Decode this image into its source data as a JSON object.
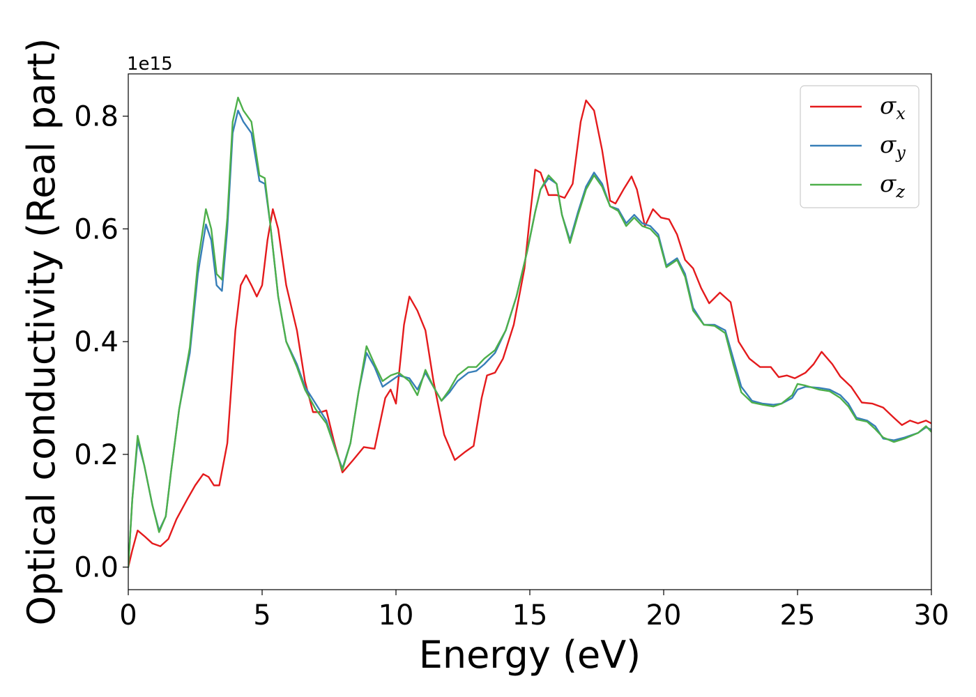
{
  "chart_data": {
    "type": "line",
    "title": "",
    "xlabel": "Energy (eV)",
    "ylabel": "Optical conductivity (Real part)",
    "y_offset_label": "1e15",
    "xlim": [
      0,
      30
    ],
    "ylim": [
      -0.04,
      0.875
    ],
    "x_ticks": [
      0,
      5,
      10,
      15,
      20,
      25,
      30
    ],
    "x_tick_labels": [
      "0",
      "5",
      "10",
      "15",
      "20",
      "25",
      "30"
    ],
    "y_ticks": [
      0.0,
      0.2,
      0.4,
      0.6,
      0.8
    ],
    "y_tick_labels": [
      "0.0",
      "0.2",
      "0.4",
      "0.6",
      "0.8"
    ],
    "grid": false,
    "legend_position": "top-right",
    "series": [
      {
        "name": "σx",
        "symbol": "σ",
        "subscript": "x",
        "color": "#e41a1c",
        "points": [
          [
            0,
            0
          ],
          [
            0.15,
            0.03
          ],
          [
            0.35,
            0.065
          ],
          [
            0.6,
            0.055
          ],
          [
            0.9,
            0.042
          ],
          [
            1.2,
            0.037
          ],
          [
            1.5,
            0.05
          ],
          [
            1.8,
            0.085
          ],
          [
            2.2,
            0.12
          ],
          [
            2.5,
            0.145
          ],
          [
            2.8,
            0.165
          ],
          [
            3.0,
            0.16
          ],
          [
            3.2,
            0.145
          ],
          [
            3.4,
            0.145
          ],
          [
            3.7,
            0.22
          ],
          [
            4.0,
            0.42
          ],
          [
            4.2,
            0.5
          ],
          [
            4.4,
            0.518
          ],
          [
            4.6,
            0.5
          ],
          [
            4.8,
            0.48
          ],
          [
            5.0,
            0.5
          ],
          [
            5.2,
            0.58
          ],
          [
            5.4,
            0.635
          ],
          [
            5.6,
            0.6
          ],
          [
            5.9,
            0.5
          ],
          [
            6.3,
            0.42
          ],
          [
            6.6,
            0.33
          ],
          [
            6.9,
            0.275
          ],
          [
            7.2,
            0.275
          ],
          [
            7.4,
            0.278
          ],
          [
            7.7,
            0.22
          ],
          [
            8.0,
            0.168
          ],
          [
            8.4,
            0.19
          ],
          [
            8.8,
            0.213
          ],
          [
            9.2,
            0.21
          ],
          [
            9.6,
            0.3
          ],
          [
            9.8,
            0.315
          ],
          [
            10.0,
            0.29
          ],
          [
            10.3,
            0.43
          ],
          [
            10.5,
            0.48
          ],
          [
            10.8,
            0.455
          ],
          [
            11.1,
            0.42
          ],
          [
            11.4,
            0.33
          ],
          [
            11.8,
            0.235
          ],
          [
            12.2,
            0.19
          ],
          [
            12.6,
            0.205
          ],
          [
            12.9,
            0.215
          ],
          [
            13.2,
            0.3
          ],
          [
            13.4,
            0.34
          ],
          [
            13.7,
            0.345
          ],
          [
            14.0,
            0.37
          ],
          [
            14.4,
            0.43
          ],
          [
            14.8,
            0.53
          ],
          [
            15.0,
            0.62
          ],
          [
            15.2,
            0.705
          ],
          [
            15.4,
            0.7
          ],
          [
            15.7,
            0.66
          ],
          [
            16.0,
            0.66
          ],
          [
            16.3,
            0.655
          ],
          [
            16.6,
            0.68
          ],
          [
            16.9,
            0.79
          ],
          [
            17.1,
            0.828
          ],
          [
            17.4,
            0.81
          ],
          [
            17.7,
            0.74
          ],
          [
            18.0,
            0.65
          ],
          [
            18.2,
            0.645
          ],
          [
            18.5,
            0.67
          ],
          [
            18.8,
            0.693
          ],
          [
            19.0,
            0.67
          ],
          [
            19.3,
            0.605
          ],
          [
            19.6,
            0.635
          ],
          [
            19.9,
            0.62
          ],
          [
            20.2,
            0.617
          ],
          [
            20.5,
            0.59
          ],
          [
            20.8,
            0.545
          ],
          [
            21.1,
            0.53
          ],
          [
            21.4,
            0.495
          ],
          [
            21.7,
            0.468
          ],
          [
            22.1,
            0.487
          ],
          [
            22.5,
            0.47
          ],
          [
            22.8,
            0.4
          ],
          [
            23.2,
            0.37
          ],
          [
            23.6,
            0.355
          ],
          [
            24.0,
            0.355
          ],
          [
            24.3,
            0.337
          ],
          [
            24.6,
            0.34
          ],
          [
            24.9,
            0.335
          ],
          [
            25.3,
            0.345
          ],
          [
            25.6,
            0.36
          ],
          [
            25.9,
            0.382
          ],
          [
            26.3,
            0.36
          ],
          [
            26.6,
            0.338
          ],
          [
            27.0,
            0.32
          ],
          [
            27.4,
            0.292
          ],
          [
            27.8,
            0.29
          ],
          [
            28.2,
            0.283
          ],
          [
            28.6,
            0.265
          ],
          [
            28.9,
            0.252
          ],
          [
            29.2,
            0.26
          ],
          [
            29.5,
            0.255
          ],
          [
            29.8,
            0.26
          ],
          [
            30.0,
            0.255
          ]
        ]
      },
      {
        "name": "σy",
        "symbol": "σ",
        "subscript": "y",
        "color": "#377eb8",
        "points": [
          [
            0,
            0
          ],
          [
            0.15,
            0.12
          ],
          [
            0.35,
            0.225
          ],
          [
            0.6,
            0.18
          ],
          [
            0.9,
            0.11
          ],
          [
            1.15,
            0.065
          ],
          [
            1.4,
            0.09
          ],
          [
            1.6,
            0.17
          ],
          [
            1.9,
            0.28
          ],
          [
            2.3,
            0.38
          ],
          [
            2.6,
            0.52
          ],
          [
            2.9,
            0.608
          ],
          [
            3.1,
            0.58
          ],
          [
            3.3,
            0.5
          ],
          [
            3.5,
            0.49
          ],
          [
            3.7,
            0.6
          ],
          [
            3.9,
            0.77
          ],
          [
            4.1,
            0.81
          ],
          [
            4.3,
            0.79
          ],
          [
            4.6,
            0.77
          ],
          [
            4.9,
            0.685
          ],
          [
            5.1,
            0.68
          ],
          [
            5.3,
            0.61
          ],
          [
            5.6,
            0.48
          ],
          [
            5.9,
            0.4
          ],
          [
            6.3,
            0.36
          ],
          [
            6.6,
            0.32
          ],
          [
            7.0,
            0.29
          ],
          [
            7.4,
            0.26
          ],
          [
            7.8,
            0.2
          ],
          [
            8.0,
            0.175
          ],
          [
            8.3,
            0.22
          ],
          [
            8.6,
            0.31
          ],
          [
            8.9,
            0.38
          ],
          [
            9.2,
            0.355
          ],
          [
            9.5,
            0.32
          ],
          [
            9.8,
            0.33
          ],
          [
            10.1,
            0.34
          ],
          [
            10.5,
            0.335
          ],
          [
            10.8,
            0.315
          ],
          [
            11.1,
            0.345
          ],
          [
            11.4,
            0.32
          ],
          [
            11.7,
            0.295
          ],
          [
            12.0,
            0.31
          ],
          [
            12.3,
            0.33
          ],
          [
            12.7,
            0.345
          ],
          [
            13.0,
            0.348
          ],
          [
            13.3,
            0.36
          ],
          [
            13.7,
            0.38
          ],
          [
            14.1,
            0.42
          ],
          [
            14.5,
            0.48
          ],
          [
            14.9,
            0.56
          ],
          [
            15.2,
            0.63
          ],
          [
            15.4,
            0.67
          ],
          [
            15.7,
            0.69
          ],
          [
            16.0,
            0.68
          ],
          [
            16.2,
            0.625
          ],
          [
            16.5,
            0.58
          ],
          [
            16.8,
            0.63
          ],
          [
            17.1,
            0.675
          ],
          [
            17.4,
            0.7
          ],
          [
            17.7,
            0.68
          ],
          [
            18.0,
            0.64
          ],
          [
            18.3,
            0.635
          ],
          [
            18.6,
            0.61
          ],
          [
            18.9,
            0.625
          ],
          [
            19.2,
            0.61
          ],
          [
            19.5,
            0.605
          ],
          [
            19.8,
            0.59
          ],
          [
            20.1,
            0.535
          ],
          [
            20.5,
            0.548
          ],
          [
            20.8,
            0.52
          ],
          [
            21.1,
            0.46
          ],
          [
            21.5,
            0.43
          ],
          [
            21.9,
            0.43
          ],
          [
            22.3,
            0.42
          ],
          [
            22.6,
            0.37
          ],
          [
            22.9,
            0.32
          ],
          [
            23.3,
            0.295
          ],
          [
            23.7,
            0.29
          ],
          [
            24.1,
            0.288
          ],
          [
            24.4,
            0.29
          ],
          [
            24.8,
            0.3
          ],
          [
            25.0,
            0.315
          ],
          [
            25.3,
            0.32
          ],
          [
            25.8,
            0.318
          ],
          [
            26.2,
            0.315
          ],
          [
            26.6,
            0.305
          ],
          [
            26.9,
            0.29
          ],
          [
            27.2,
            0.265
          ],
          [
            27.6,
            0.26
          ],
          [
            27.9,
            0.25
          ],
          [
            28.2,
            0.228
          ],
          [
            28.6,
            0.225
          ],
          [
            29.0,
            0.23
          ],
          [
            29.5,
            0.238
          ],
          [
            29.8,
            0.248
          ],
          [
            30.0,
            0.244
          ]
        ]
      },
      {
        "name": "σz",
        "symbol": "σ",
        "subscript": "z",
        "color": "#4daf4a",
        "points": [
          [
            0,
            0
          ],
          [
            0.15,
            0.12
          ],
          [
            0.35,
            0.233
          ],
          [
            0.6,
            0.18
          ],
          [
            0.9,
            0.11
          ],
          [
            1.15,
            0.062
          ],
          [
            1.4,
            0.09
          ],
          [
            1.6,
            0.17
          ],
          [
            1.9,
            0.28
          ],
          [
            2.3,
            0.39
          ],
          [
            2.6,
            0.54
          ],
          [
            2.9,
            0.635
          ],
          [
            3.1,
            0.6
          ],
          [
            3.3,
            0.52
          ],
          [
            3.5,
            0.51
          ],
          [
            3.7,
            0.62
          ],
          [
            3.9,
            0.79
          ],
          [
            4.1,
            0.833
          ],
          [
            4.3,
            0.81
          ],
          [
            4.6,
            0.79
          ],
          [
            4.9,
            0.695
          ],
          [
            5.1,
            0.69
          ],
          [
            5.3,
            0.61
          ],
          [
            5.6,
            0.48
          ],
          [
            5.9,
            0.4
          ],
          [
            6.3,
            0.355
          ],
          [
            6.6,
            0.315
          ],
          [
            7.0,
            0.28
          ],
          [
            7.4,
            0.255
          ],
          [
            7.8,
            0.2
          ],
          [
            8.0,
            0.172
          ],
          [
            8.3,
            0.22
          ],
          [
            8.6,
            0.31
          ],
          [
            8.9,
            0.392
          ],
          [
            9.2,
            0.36
          ],
          [
            9.5,
            0.33
          ],
          [
            9.8,
            0.34
          ],
          [
            10.1,
            0.345
          ],
          [
            10.5,
            0.33
          ],
          [
            10.8,
            0.305
          ],
          [
            11.1,
            0.35
          ],
          [
            11.4,
            0.32
          ],
          [
            11.7,
            0.295
          ],
          [
            12.0,
            0.315
          ],
          [
            12.3,
            0.34
          ],
          [
            12.7,
            0.355
          ],
          [
            13.0,
            0.355
          ],
          [
            13.3,
            0.37
          ],
          [
            13.7,
            0.385
          ],
          [
            14.1,
            0.42
          ],
          [
            14.5,
            0.48
          ],
          [
            14.9,
            0.56
          ],
          [
            15.2,
            0.63
          ],
          [
            15.4,
            0.67
          ],
          [
            15.7,
            0.695
          ],
          [
            16.0,
            0.68
          ],
          [
            16.2,
            0.625
          ],
          [
            16.5,
            0.575
          ],
          [
            16.8,
            0.625
          ],
          [
            17.1,
            0.67
          ],
          [
            17.4,
            0.695
          ],
          [
            17.7,
            0.675
          ],
          [
            18.0,
            0.64
          ],
          [
            18.3,
            0.632
          ],
          [
            18.6,
            0.605
          ],
          [
            18.9,
            0.62
          ],
          [
            19.2,
            0.605
          ],
          [
            19.5,
            0.6
          ],
          [
            19.8,
            0.585
          ],
          [
            20.1,
            0.532
          ],
          [
            20.5,
            0.545
          ],
          [
            20.8,
            0.515
          ],
          [
            21.1,
            0.455
          ],
          [
            21.5,
            0.43
          ],
          [
            21.9,
            0.428
          ],
          [
            22.3,
            0.415
          ],
          [
            22.6,
            0.36
          ],
          [
            22.9,
            0.31
          ],
          [
            23.3,
            0.292
          ],
          [
            23.7,
            0.288
          ],
          [
            24.1,
            0.285
          ],
          [
            24.4,
            0.29
          ],
          [
            24.8,
            0.305
          ],
          [
            25.0,
            0.325
          ],
          [
            25.3,
            0.322
          ],
          [
            25.8,
            0.315
          ],
          [
            26.2,
            0.312
          ],
          [
            26.6,
            0.3
          ],
          [
            26.9,
            0.285
          ],
          [
            27.2,
            0.262
          ],
          [
            27.6,
            0.258
          ],
          [
            27.9,
            0.245
          ],
          [
            28.2,
            0.23
          ],
          [
            28.6,
            0.222
          ],
          [
            29.0,
            0.228
          ],
          [
            29.5,
            0.238
          ],
          [
            29.8,
            0.25
          ],
          [
            30.0,
            0.24
          ]
        ]
      }
    ]
  }
}
